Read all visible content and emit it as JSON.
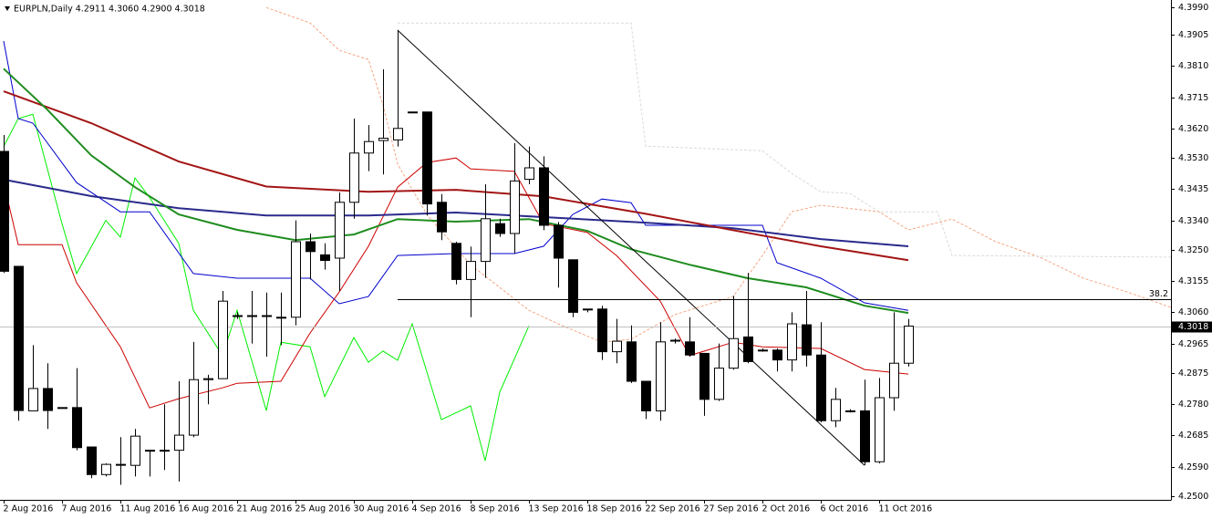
{
  "chart_data": {
    "type": "candlestick",
    "header": "EURPLN,Daily  4.2911 4.3060 4.2900 4.3018",
    "categories": [
      "2 Aug 2016",
      null,
      null,
      null,
      "7 Aug 2016",
      null,
      null,
      null,
      "11 Aug 2016",
      null,
      null,
      null,
      "16 Aug 2016",
      null,
      null,
      null,
      "21 Aug 2016",
      null,
      null,
      null,
      "25 Aug 2016",
      null,
      null,
      null,
      "30 Aug 2016",
      null,
      null,
      null,
      "4 Sep 2016",
      null,
      null,
      null,
      "8 Sep 2016",
      null,
      null,
      null,
      "13 Sep 2016",
      null,
      null,
      null,
      "18 Sep 2016",
      null,
      null,
      null,
      "22 Sep 2016",
      null,
      null,
      null,
      "27 Sep 2016",
      null,
      null,
      null,
      "2 Oct 2016",
      null,
      null,
      null,
      "6 Oct 2016",
      null,
      null,
      null,
      "11 Oct 2016",
      null,
      null
    ],
    "open": [
      4.355,
      4.32,
      4.276,
      4.2828,
      4.277,
      4.277,
      4.265,
      4.2566,
      4.2597,
      4.2594,
      4.264,
      4.264,
      4.264,
      4.2686,
      4.2855,
      4.2858,
      4.305,
      4.305,
      4.305,
      4.3045,
      4.3045,
      4.3275,
      4.3235,
      4.3225,
      4.3395,
      4.3545,
      4.3583,
      4.3585,
      4.367,
      4.367,
      4.3395,
      4.327,
      4.316,
      4.3215,
      4.333,
      4.33,
      4.3465,
      4.35,
      4.3325,
      4.322,
      4.307,
      4.307,
      4.294,
      4.297,
      4.285,
      4.276,
      4.2975,
      4.297,
      4.2935,
      4.2795,
      4.289,
      4.2985,
      4.2945,
      4.2945,
      4.2915,
      4.3022,
      4.293,
      4.273,
      4.276,
      4.276,
      4.2605,
      4.28,
      4.2905
    ],
    "high": [
      4.36,
      4.32,
      4.296,
      4.2905,
      4.277,
      4.289,
      4.265,
      4.26,
      4.268,
      4.2705,
      4.264,
      4.278,
      4.285,
      4.297,
      4.287,
      4.3125,
      4.306,
      4.3125,
      4.312,
      4.312,
      4.334,
      4.33,
      4.327,
      4.3425,
      4.365,
      4.363,
      4.38,
      4.392,
      4.367,
      4.367,
      4.342,
      4.3275,
      4.326,
      4.345,
      4.3345,
      4.3575,
      4.3565,
      4.3535,
      4.3335,
      4.322,
      4.307,
      4.308,
      4.304,
      4.302,
      4.285,
      4.303,
      4.298,
      4.3045,
      4.2935,
      4.2965,
      4.311,
      4.318,
      4.295,
      4.295,
      4.306,
      4.3125,
      4.303,
      4.283,
      4.2765,
      4.2855,
      4.286,
      4.306,
      4.304
    ],
    "low": [
      4.318,
      4.273,
      4.276,
      4.2705,
      4.277,
      4.264,
      4.2555,
      4.256,
      4.2535,
      4.256,
      4.256,
      4.258,
      4.2545,
      4.268,
      4.278,
      4.2858,
      4.304,
      4.2965,
      4.2925,
      4.296,
      4.302,
      4.316,
      4.319,
      4.3125,
      4.3345,
      4.349,
      4.348,
      4.3565,
      4.367,
      4.3355,
      4.328,
      4.3145,
      4.3045,
      4.3165,
      4.329,
      4.324,
      4.345,
      4.331,
      4.3135,
      4.3045,
      4.306,
      4.2915,
      4.2905,
      4.2845,
      4.2735,
      4.273,
      4.2965,
      4.2925,
      4.2745,
      4.279,
      4.2885,
      4.2905,
      4.294,
      4.288,
      4.288,
      4.2895,
      4.2725,
      4.271,
      4.2755,
      4.2595,
      4.26,
      4.276,
      4.2895
    ],
    "close": [
      4.3185,
      4.2761,
      4.2828,
      4.2761,
      4.277,
      4.2648,
      4.2566,
      4.2597,
      4.2597,
      4.2683,
      4.264,
      4.264,
      4.2686,
      4.2855,
      4.2858,
      4.3094,
      4.305,
      4.305,
      4.305,
      4.3045,
      4.3275,
      4.3245,
      4.3218,
      4.3395,
      4.3545,
      4.358,
      4.359,
      4.362,
      4.367,
      4.339,
      4.3305,
      4.316,
      4.3215,
      4.3345,
      4.33,
      4.346,
      4.35,
      4.3325,
      4.3225,
      4.306,
      4.307,
      4.294,
      4.2972,
      4.285,
      4.276,
      4.297,
      4.2975,
      4.293,
      4.2795,
      4.289,
      4.298,
      4.291,
      4.2945,
      4.2915,
      4.3025,
      4.293,
      4.273,
      4.2795,
      4.276,
      4.2605,
      4.28,
      4.2905,
      4.3018
    ],
    "bull_color": "#ffffff",
    "bear_color": "#000000",
    "xlim": [
      -0.25,
      80
    ],
    "ylim": [
      4.2489,
      4.4011
    ],
    "yticks": [
      {
        "value": 4.399,
        "label": "4.3990"
      },
      4.3905,
      {
        "value": 4.381,
        "label": "4.3810"
      },
      4.3715,
      {
        "value": 4.362,
        "label": "4.3620"
      },
      {
        "value": 4.353,
        "label": "4.3530"
      },
      4.3435,
      {
        "value": 4.334,
        "label": "4.3340"
      },
      {
        "value": 4.325,
        "label": "4.3250"
      },
      4.3155,
      {
        "value": 4.306,
        "label": "4.3060"
      },
      4.2965,
      4.2875,
      {
        "value": 4.278,
        "label": "4.2780"
      },
      4.2685,
      {
        "value": 4.259,
        "label": "4.2590"
      },
      {
        "value": 4.25,
        "label": "4.2500"
      }
    ],
    "series": [
      {
        "color": "#f4a582",
        "width": 1,
        "dash": true,
        "x": [
          18,
          21,
          23,
          25,
          26,
          27,
          29,
          32,
          36,
          38,
          41,
          43,
          46,
          50,
          52,
          54,
          56,
          60,
          62,
          65,
          68,
          71,
          74,
          77,
          80
        ],
        "values": [
          4.3988,
          4.3941,
          4.3858,
          4.383,
          4.3691,
          4.3511,
          4.3358,
          4.3205,
          4.3066,
          4.3025,
          4.2969,
          4.2978,
          4.3053,
          4.3108,
          4.3233,
          4.3366,
          4.3386,
          4.3366,
          4.3311,
          4.3344,
          4.3275,
          4.3228,
          4.3164,
          4.3122,
          4.3075
        ]
      },
      {
        "color": "#d9d9d9",
        "width": 1,
        "dash": true,
        "x": [
          27,
          43,
          44,
          52,
          54,
          56,
          58,
          60,
          64,
          65,
          80
        ],
        "values": [
          4.3941,
          4.3941,
          4.3566,
          4.3552,
          4.3483,
          4.3427,
          4.3422,
          4.3366,
          4.3366,
          4.3233,
          4.3228
        ]
      },
      {
        "color": "#00ee00",
        "width": 1,
        "x": [
          0,
          1,
          2,
          4,
          5,
          7,
          8,
          9,
          10,
          12,
          13,
          15,
          16,
          18,
          19,
          21,
          22,
          24,
          25,
          26,
          27,
          28,
          30,
          32,
          33,
          34,
          36
        ],
        "values": [
          4.3565,
          4.365,
          4.3663,
          4.333,
          4.3178,
          4.334,
          4.3289,
          4.3469,
          4.341,
          4.327,
          4.3066,
          4.2928,
          4.3066,
          4.2761,
          4.2969,
          4.2955,
          4.2803,
          4.2983,
          4.2908,
          4.2942,
          4.2914,
          4.3025,
          4.2733,
          4.2775,
          4.2608,
          4.2817,
          4.3019
        ]
      },
      {
        "color": "#0000cc",
        "width": 1,
        "x": [
          0,
          1,
          2,
          5,
          8,
          10,
          13,
          16,
          18,
          21,
          23,
          25,
          27,
          31,
          35,
          37,
          39,
          41,
          43,
          44,
          52,
          53,
          56,
          59,
          62
        ],
        "values": [
          4.3886,
          4.365,
          4.3636,
          4.3455,
          4.3366,
          4.3366,
          4.3178,
          4.3164,
          4.3164,
          4.3164,
          4.3086,
          4.3108,
          4.3233,
          4.3239,
          4.3239,
          4.3261,
          4.3358,
          4.3405,
          4.3394,
          4.3325,
          4.3325,
          4.3211,
          4.3164,
          4.3089,
          4.3066
        ]
      },
      {
        "color": "#cc0000",
        "width": 1,
        "x": [
          0,
          1,
          4,
          5,
          8,
          10,
          12,
          15,
          16,
          19,
          21,
          23,
          25,
          27,
          29,
          31,
          32,
          35,
          37,
          40,
          42,
          45,
          47,
          50,
          52,
          56,
          59,
          62
        ],
        "values": [
          4.3455,
          4.3266,
          4.3266,
          4.315,
          4.2955,
          4.2769,
          4.2797,
          4.283,
          4.2844,
          4.285,
          4.2997,
          4.3122,
          4.3261,
          4.3441,
          4.3516,
          4.353,
          4.3497,
          4.3489,
          4.333,
          4.3303,
          4.3233,
          4.3094,
          4.2928,
          4.2969,
          4.2955,
          4.295,
          4.2886,
          4.2872
        ]
      },
      {
        "color": "#2a2a8c",
        "width": 2,
        "x": [
          0,
          6,
          12,
          18,
          25,
          31,
          37,
          44,
          50,
          56,
          62
        ],
        "values": [
          4.3464,
          4.3414,
          4.3377,
          4.3355,
          4.3355,
          4.3364,
          4.335,
          4.3333,
          4.3316,
          4.3283,
          4.3261
        ]
      },
      {
        "color": "#a31515",
        "width": 2,
        "x": [
          0,
          6,
          12,
          18,
          25,
          31,
          37,
          44,
          50,
          56,
          62
        ],
        "values": [
          4.3733,
          4.3636,
          4.3519,
          4.3443,
          4.3427,
          4.3433,
          4.3413,
          4.336,
          4.331,
          4.3261,
          4.3219
        ]
      },
      {
        "color": "#1e8c1e",
        "width": 2,
        "x": [
          0,
          3,
          6,
          9,
          12,
          16,
          20,
          24,
          27,
          31,
          36,
          40,
          43,
          47,
          51,
          55,
          59,
          62
        ],
        "values": [
          4.3802,
          4.3677,
          4.3538,
          4.3441,
          4.3358,
          4.3311,
          4.328,
          4.3297,
          4.3344,
          4.3336,
          4.3344,
          4.3308,
          4.3252,
          4.3205,
          4.3164,
          4.3136,
          4.308,
          4.3058
        ]
      },
      {
        "color": "#000000",
        "width": 1,
        "x": [
          27,
          59
        ],
        "values": [
          4.3919,
          4.2594
        ]
      }
    ],
    "levels": [
      {
        "from": 27,
        "value": 4.31,
        "label": "38.2",
        "color": "#000000"
      }
    ],
    "last_price": {
      "value": 4.3018,
      "label": "4.3018"
    }
  }
}
